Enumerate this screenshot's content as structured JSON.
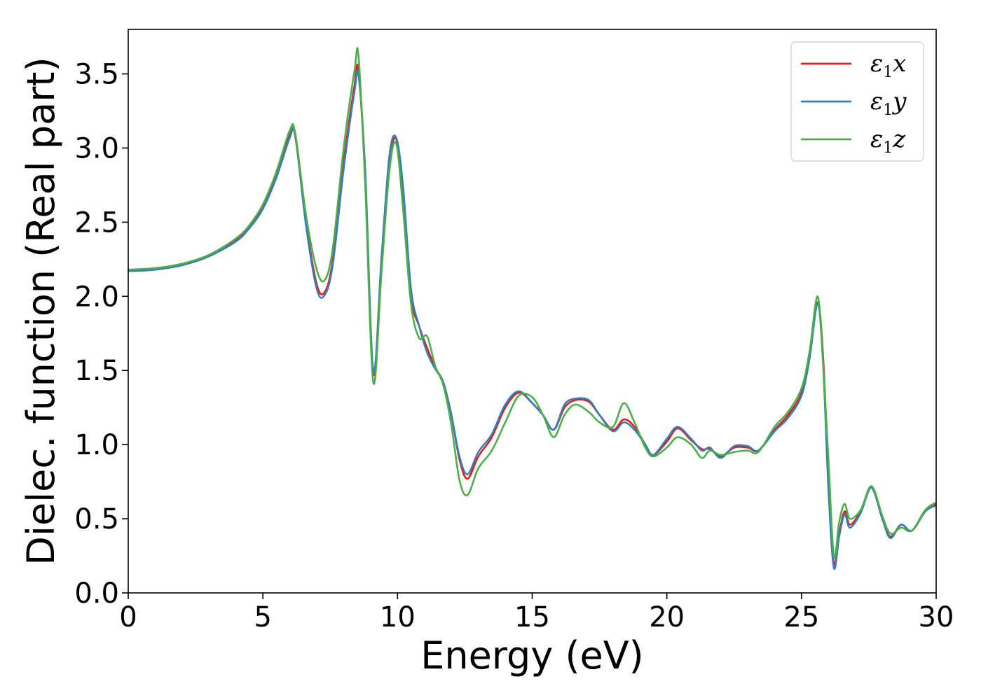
{
  "chart_data": {
    "type": "line",
    "title": "",
    "xlabel": "Energy (eV)",
    "ylabel": "Dielec. function (Real part)",
    "xlim": [
      0,
      30
    ],
    "ylim": [
      0,
      3.8
    ],
    "xticks": [
      0,
      5,
      10,
      15,
      20,
      25,
      30
    ],
    "yticks": [
      0.0,
      0.5,
      1.0,
      1.5,
      2.0,
      2.5,
      3.0,
      3.5
    ],
    "xtick_labels": [
      "0",
      "5",
      "10",
      "15",
      "20",
      "25",
      "30"
    ],
    "ytick_labels": [
      "0.0",
      "0.5",
      "1.0",
      "1.5",
      "2.0",
      "2.5",
      "3.0",
      "3.5"
    ],
    "grid": false,
    "legend_position": "top-right",
    "series": [
      {
        "name": "ε1x",
        "legend_base": "ε",
        "legend_sub": "1",
        "legend_var": "x",
        "color": "#e41a1c",
        "points": [
          [
            0,
            2.17
          ],
          [
            1,
            2.18
          ],
          [
            2,
            2.21
          ],
          [
            3,
            2.27
          ],
          [
            4,
            2.38
          ],
          [
            4.5,
            2.47
          ],
          [
            5,
            2.6
          ],
          [
            5.5,
            2.82
          ],
          [
            6,
            3.09
          ],
          [
            6.2,
            3.08
          ],
          [
            6.6,
            2.5
          ],
          [
            7,
            2.08
          ],
          [
            7.3,
            2.03
          ],
          [
            7.6,
            2.25
          ],
          [
            8,
            2.9
          ],
          [
            8.4,
            3.42
          ],
          [
            8.55,
            3.52
          ],
          [
            8.8,
            2.8
          ],
          [
            9.1,
            1.48
          ],
          [
            9.4,
            2.2
          ],
          [
            9.7,
            2.9
          ],
          [
            9.95,
            3.06
          ],
          [
            10.2,
            2.7
          ],
          [
            10.5,
            2.0
          ],
          [
            10.8,
            1.8
          ],
          [
            11.1,
            1.65
          ],
          [
            11.4,
            1.52
          ],
          [
            11.7,
            1.42
          ],
          [
            12,
            1.2
          ],
          [
            12.3,
            0.9
          ],
          [
            12.6,
            0.77
          ],
          [
            13,
            0.92
          ],
          [
            13.5,
            1.05
          ],
          [
            14,
            1.25
          ],
          [
            14.5,
            1.35
          ],
          [
            15,
            1.28
          ],
          [
            15.4,
            1.2
          ],
          [
            15.8,
            1.1
          ],
          [
            16.2,
            1.25
          ],
          [
            16.6,
            1.3
          ],
          [
            17.1,
            1.29
          ],
          [
            17.5,
            1.2
          ],
          [
            18,
            1.1
          ],
          [
            18.4,
            1.17
          ],
          [
            18.8,
            1.12
          ],
          [
            19.2,
            1.0
          ],
          [
            19.5,
            0.93
          ],
          [
            20,
            1.02
          ],
          [
            20.4,
            1.11
          ],
          [
            20.9,
            1.03
          ],
          [
            21.3,
            0.97
          ],
          [
            21.6,
            0.97
          ],
          [
            22,
            0.92
          ],
          [
            22.5,
            0.98
          ],
          [
            23,
            0.98
          ],
          [
            23.4,
            0.96
          ],
          [
            24,
            1.1
          ],
          [
            24.5,
            1.2
          ],
          [
            25,
            1.35
          ],
          [
            25.3,
            1.6
          ],
          [
            25.6,
            1.96
          ],
          [
            25.8,
            1.6
          ],
          [
            26,
            0.8
          ],
          [
            26.2,
            0.2
          ],
          [
            26.4,
            0.4
          ],
          [
            26.6,
            0.55
          ],
          [
            26.8,
            0.46
          ],
          [
            27.2,
            0.55
          ],
          [
            27.6,
            0.71
          ],
          [
            28,
            0.5
          ],
          [
            28.3,
            0.38
          ],
          [
            28.7,
            0.46
          ],
          [
            29.1,
            0.42
          ],
          [
            29.6,
            0.55
          ],
          [
            30,
            0.6
          ]
        ]
      },
      {
        "name": "ε1y",
        "legend_base": "ε",
        "legend_sub": "1",
        "legend_var": "y",
        "color": "#377eb8",
        "points": [
          [
            0,
            2.17
          ],
          [
            1,
            2.18
          ],
          [
            2,
            2.21
          ],
          [
            3,
            2.27
          ],
          [
            4,
            2.37
          ],
          [
            4.5,
            2.46
          ],
          [
            5,
            2.59
          ],
          [
            5.5,
            2.8
          ],
          [
            6,
            3.07
          ],
          [
            6.2,
            3.09
          ],
          [
            6.6,
            2.48
          ],
          [
            7,
            2.05
          ],
          [
            7.3,
            2.01
          ],
          [
            7.6,
            2.22
          ],
          [
            8,
            2.86
          ],
          [
            8.4,
            3.38
          ],
          [
            8.55,
            3.49
          ],
          [
            8.8,
            2.85
          ],
          [
            9.1,
            1.5
          ],
          [
            9.4,
            2.25
          ],
          [
            9.7,
            2.95
          ],
          [
            9.95,
            3.07
          ],
          [
            10.2,
            2.75
          ],
          [
            10.5,
            2.05
          ],
          [
            10.8,
            1.8
          ],
          [
            11.1,
            1.62
          ],
          [
            11.4,
            1.51
          ],
          [
            11.7,
            1.42
          ],
          [
            12,
            1.2
          ],
          [
            12.3,
            0.92
          ],
          [
            12.6,
            0.8
          ],
          [
            13,
            0.95
          ],
          [
            13.5,
            1.07
          ],
          [
            14,
            1.27
          ],
          [
            14.5,
            1.36
          ],
          [
            15,
            1.28
          ],
          [
            15.4,
            1.2
          ],
          [
            15.8,
            1.1
          ],
          [
            16.2,
            1.27
          ],
          [
            16.6,
            1.31
          ],
          [
            17.1,
            1.3
          ],
          [
            17.5,
            1.2
          ],
          [
            18,
            1.09
          ],
          [
            18.4,
            1.15
          ],
          [
            18.8,
            1.1
          ],
          [
            19.2,
            1.0
          ],
          [
            19.5,
            0.93
          ],
          [
            20,
            1.04
          ],
          [
            20.4,
            1.12
          ],
          [
            20.9,
            1.04
          ],
          [
            21.3,
            0.96
          ],
          [
            21.6,
            0.98
          ],
          [
            22,
            0.91
          ],
          [
            22.5,
            0.99
          ],
          [
            23,
            0.99
          ],
          [
            23.4,
            0.96
          ],
          [
            24,
            1.09
          ],
          [
            24.5,
            1.18
          ],
          [
            25,
            1.33
          ],
          [
            25.3,
            1.58
          ],
          [
            25.6,
            1.95
          ],
          [
            25.8,
            1.55
          ],
          [
            26,
            0.7
          ],
          [
            26.2,
            0.17
          ],
          [
            26.4,
            0.38
          ],
          [
            26.6,
            0.53
          ],
          [
            26.8,
            0.44
          ],
          [
            27.2,
            0.54
          ],
          [
            27.6,
            0.71
          ],
          [
            28,
            0.5
          ],
          [
            28.3,
            0.37
          ],
          [
            28.7,
            0.46
          ],
          [
            29.1,
            0.42
          ],
          [
            29.6,
            0.55
          ],
          [
            30,
            0.59
          ]
        ]
      },
      {
        "name": "ε1z",
        "legend_base": "ε",
        "legend_sub": "1",
        "legend_var": "z",
        "color": "#4daf4a",
        "points": [
          [
            0,
            2.18
          ],
          [
            1,
            2.19
          ],
          [
            2,
            2.22
          ],
          [
            3,
            2.28
          ],
          [
            4,
            2.39
          ],
          [
            4.5,
            2.48
          ],
          [
            5,
            2.62
          ],
          [
            5.5,
            2.84
          ],
          [
            6,
            3.12
          ],
          [
            6.2,
            3.1
          ],
          [
            6.6,
            2.55
          ],
          [
            7,
            2.18
          ],
          [
            7.3,
            2.11
          ],
          [
            7.6,
            2.33
          ],
          [
            8,
            3.0
          ],
          [
            8.4,
            3.52
          ],
          [
            8.55,
            3.62
          ],
          [
            8.8,
            2.75
          ],
          [
            9.1,
            1.42
          ],
          [
            9.4,
            2.15
          ],
          [
            9.7,
            2.85
          ],
          [
            9.95,
            3.03
          ],
          [
            10.2,
            2.6
          ],
          [
            10.5,
            1.95
          ],
          [
            10.8,
            1.72
          ],
          [
            11.1,
            1.73
          ],
          [
            11.4,
            1.53
          ],
          [
            11.7,
            1.4
          ],
          [
            12,
            1.13
          ],
          [
            12.3,
            0.76
          ],
          [
            12.6,
            0.66
          ],
          [
            13,
            0.84
          ],
          [
            13.5,
            0.96
          ],
          [
            14,
            1.15
          ],
          [
            14.5,
            1.33
          ],
          [
            15,
            1.32
          ],
          [
            15.4,
            1.2
          ],
          [
            15.8,
            1.05
          ],
          [
            16.2,
            1.2
          ],
          [
            16.6,
            1.27
          ],
          [
            17.1,
            1.22
          ],
          [
            17.5,
            1.15
          ],
          [
            18,
            1.12
          ],
          [
            18.4,
            1.28
          ],
          [
            18.8,
            1.15
          ],
          [
            19.2,
            0.98
          ],
          [
            19.5,
            0.92
          ],
          [
            20,
            0.98
          ],
          [
            20.4,
            1.05
          ],
          [
            20.9,
            1.0
          ],
          [
            21.3,
            0.91
          ],
          [
            21.6,
            0.96
          ],
          [
            22,
            0.93
          ],
          [
            22.5,
            0.95
          ],
          [
            23,
            0.96
          ],
          [
            23.4,
            0.95
          ],
          [
            24,
            1.12
          ],
          [
            24.5,
            1.22
          ],
          [
            25,
            1.38
          ],
          [
            25.3,
            1.63
          ],
          [
            25.6,
            2.0
          ],
          [
            25.8,
            1.55
          ],
          [
            26,
            0.9
          ],
          [
            26.2,
            0.25
          ],
          [
            26.4,
            0.48
          ],
          [
            26.6,
            0.6
          ],
          [
            26.8,
            0.5
          ],
          [
            27.2,
            0.56
          ],
          [
            27.6,
            0.72
          ],
          [
            28,
            0.52
          ],
          [
            28.3,
            0.4
          ],
          [
            28.7,
            0.44
          ],
          [
            29.1,
            0.42
          ],
          [
            29.6,
            0.56
          ],
          [
            30,
            0.61
          ]
        ]
      }
    ]
  }
}
